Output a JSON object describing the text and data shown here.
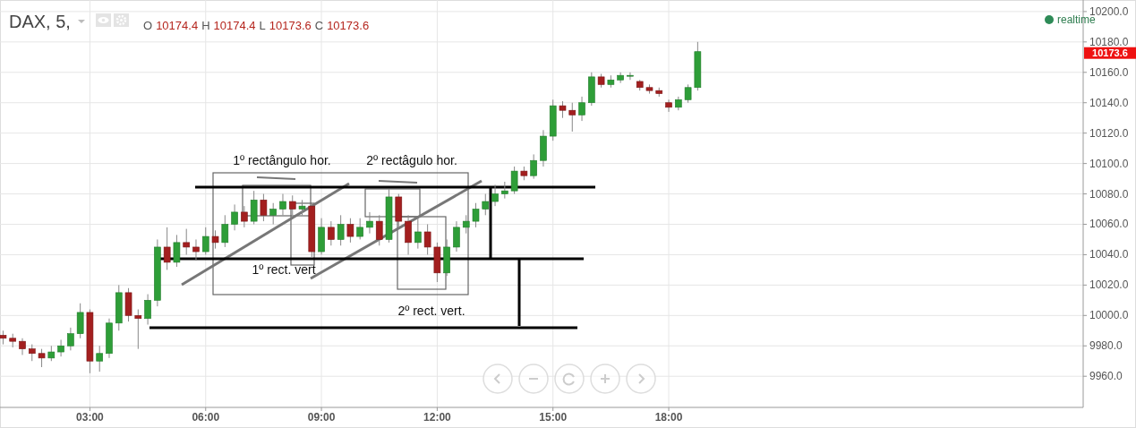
{
  "chart_data": {
    "type": "candlestick",
    "title": "DAX, 5,",
    "x": [
      0.75,
      1,
      1.25,
      1.5,
      1.75,
      2,
      2.25,
      2.5,
      2.75,
      3,
      3.25,
      3.5,
      3.75,
      4,
      4.25,
      4.5,
      4.75,
      5,
      5.25,
      5.5,
      5.75,
      6,
      6.25,
      6.5,
      6.75,
      7,
      7.25,
      7.5,
      7.75,
      8,
      8.25,
      8.5,
      8.75,
      9,
      9.25,
      9.5,
      9.75,
      10,
      10.25,
      10.5,
      10.75,
      11,
      11.25,
      11.5,
      11.75,
      12,
      12.25,
      12.5,
      12.75,
      13,
      13.25,
      13.5,
      13.75,
      14,
      14.25,
      14.5,
      14.75,
      15,
      15.25,
      15.5,
      15.75,
      16,
      16.25,
      16.5,
      16.75,
      17,
      17.25,
      17.5,
      17.75,
      18,
      18.25,
      18.5,
      18.75
    ],
    "ohlc": [
      [
        9987,
        9990,
        9981,
        9985
      ],
      [
        9985,
        9988,
        9979,
        9983
      ],
      [
        9983,
        9985,
        9974,
        9978
      ],
      [
        9978,
        9981,
        9970,
        9975
      ],
      [
        9975,
        9978,
        9966,
        9972
      ],
      [
        9972,
        9980,
        9970,
        9976
      ],
      [
        9976,
        9984,
        9973,
        9980
      ],
      [
        9980,
        9992,
        9977,
        9988
      ],
      [
        9988,
        10008,
        9985,
        10002
      ],
      [
        10002,
        10004,
        9962,
        9970
      ],
      [
        9970,
        9980,
        9963,
        9975
      ],
      [
        9975,
        9998,
        9972,
        9995
      ],
      [
        9995,
        10020,
        9990,
        10015
      ],
      [
        10015,
        10018,
        9996,
        10000
      ],
      [
        10000,
        10004,
        9978,
        9998
      ],
      [
        9998,
        10014,
        9994,
        10010
      ],
      [
        10010,
        10050,
        10006,
        10045
      ],
      [
        10045,
        10058,
        10030,
        10035
      ],
      [
        10035,
        10053,
        10032,
        10048
      ],
      [
        10048,
        10057,
        10040,
        10045
      ],
      [
        10045,
        10050,
        10036,
        10042
      ],
      [
        10042,
        10058,
        10040,
        10052
      ],
      [
        10052,
        10056,
        10044,
        10048
      ],
      [
        10048,
        10066,
        10045,
        10060
      ],
      [
        10060,
        10073,
        10056,
        10068
      ],
      [
        10068,
        10072,
        10058,
        10062
      ],
      [
        10062,
        10082,
        10060,
        10076
      ],
      [
        10076,
        10080,
        10062,
        10066
      ],
      [
        10066,
        10074,
        10060,
        10070
      ],
      [
        10070,
        10080,
        10066,
        10075
      ],
      [
        10075,
        10079,
        10066,
        10070
      ],
      [
        10070,
        10076,
        10066,
        10072
      ],
      [
        10072,
        10074,
        10038,
        10042
      ],
      [
        10042,
        10064,
        10040,
        10058
      ],
      [
        10058,
        10062,
        10046,
        10050
      ],
      [
        10050,
        10066,
        10046,
        10060
      ],
      [
        10060,
        10064,
        10048,
        10052
      ],
      [
        10052,
        10064,
        10050,
        10058
      ],
      [
        10058,
        10068,
        10054,
        10062
      ],
      [
        10062,
        10066,
        10046,
        10050
      ],
      [
        10050,
        10083,
        10048,
        10078
      ],
      [
        10078,
        10080,
        10058,
        10062
      ],
      [
        10062,
        10066,
        10040,
        10048
      ],
      [
        10048,
        10064,
        10044,
        10055
      ],
      [
        10055,
        10060,
        10040,
        10045
      ],
      [
        10045,
        10048,
        10022,
        10028
      ],
      [
        10028,
        10050,
        10026,
        10045
      ],
      [
        10045,
        10062,
        10042,
        10058
      ],
      [
        10058,
        10066,
        10054,
        10062
      ],
      [
        10062,
        10074,
        10058,
        10070
      ],
      [
        10070,
        10080,
        10066,
        10075
      ],
      [
        10075,
        10086,
        10072,
        10080
      ],
      [
        10080,
        10088,
        10077,
        10082
      ],
      [
        10082,
        10098,
        10080,
        10095
      ],
      [
        10095,
        10098,
        10089,
        10092
      ],
      [
        10092,
        10106,
        10090,
        10102
      ],
      [
        10102,
        10122,
        10098,
        10118
      ],
      [
        10118,
        10142,
        10115,
        10138
      ],
      [
        10138,
        10141,
        10130,
        10135
      ],
      [
        10135,
        10140,
        10121,
        10132
      ],
      [
        10132,
        10144,
        10128,
        10140
      ],
      [
        10140,
        10160,
        10138,
        10157
      ],
      [
        10157,
        10159,
        10150,
        10152
      ],
      [
        10152,
        10158,
        10150,
        10155
      ],
      [
        10155,
        10160,
        10153,
        10158
      ],
      [
        10158,
        10160,
        10155,
        10158
      ],
      [
        10154,
        10155,
        10148,
        10150
      ],
      [
        10150,
        10152,
        10146,
        10148
      ],
      [
        10148,
        10150,
        10144,
        10146
      ],
      [
        10140,
        10142,
        10134,
        10137
      ],
      [
        10137,
        10144,
        10135,
        10142
      ],
      [
        10142,
        10152,
        10140,
        10150
      ],
      [
        10150,
        10180,
        10148,
        10173.6
      ]
    ],
    "xlim": [
      0.67,
      28.74
    ],
    "xticks": [
      {
        "value": 3,
        "label": "03:00"
      },
      {
        "value": 6,
        "label": "06:00"
      },
      {
        "value": 9,
        "label": "09:00"
      },
      {
        "value": 12,
        "label": "12:00"
      },
      {
        "value": 15,
        "label": "15:00"
      },
      {
        "value": 18,
        "label": "18:00"
      }
    ],
    "ylim": [
      9939.5,
      10207.6
    ],
    "yticks": [
      {
        "value": 9960,
        "label": "9960.0"
      },
      {
        "value": 9980,
        "label": "9980.0"
      },
      {
        "value": 10000,
        "label": "10000.0"
      },
      {
        "value": 10020,
        "label": "10020.0"
      },
      {
        "value": 10040,
        "label": "10040.0"
      },
      {
        "value": 10060,
        "label": "10060.0"
      },
      {
        "value": 10080,
        "label": "10080.0"
      },
      {
        "value": 10100,
        "label": "10100.0"
      },
      {
        "value": 10120,
        "label": "10120.0"
      },
      {
        "value": 10140,
        "label": "10140.0"
      },
      {
        "value": 10160,
        "label": "10160.0"
      },
      {
        "value": 10180,
        "label": "10180.0"
      },
      {
        "value": 10200,
        "label": "10200.0"
      }
    ],
    "grid": true,
    "annotations": [
      "O 10174.4 H 10174.4 L 10173.6 C 10173.6",
      "realtime",
      "10173.6",
      "1º rectângulo hor.",
      "2º rectâgulo hor.",
      "1º rect. vert",
      "2º rect. vert."
    ]
  }
}
